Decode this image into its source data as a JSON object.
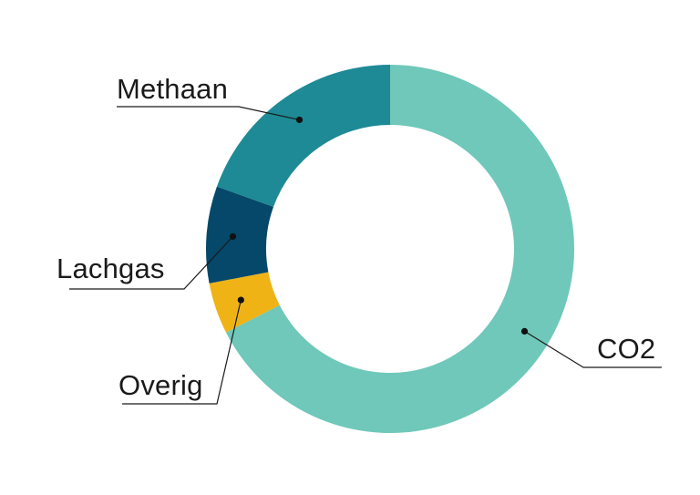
{
  "chart_data": {
    "type": "pie",
    "variant": "donut",
    "title": "",
    "legend": "none",
    "slices": [
      {
        "label": "CO2",
        "value": 67.5,
        "color": "#6fc8b9"
      },
      {
        "label": "Overig",
        "value": 4.5,
        "color": "#efb316"
      },
      {
        "label": "Lachgas",
        "value": 8.5,
        "color": "#05486a"
      },
      {
        "label": "Methaan",
        "value": 19.5,
        "color": "#1d8a96"
      }
    ]
  }
}
